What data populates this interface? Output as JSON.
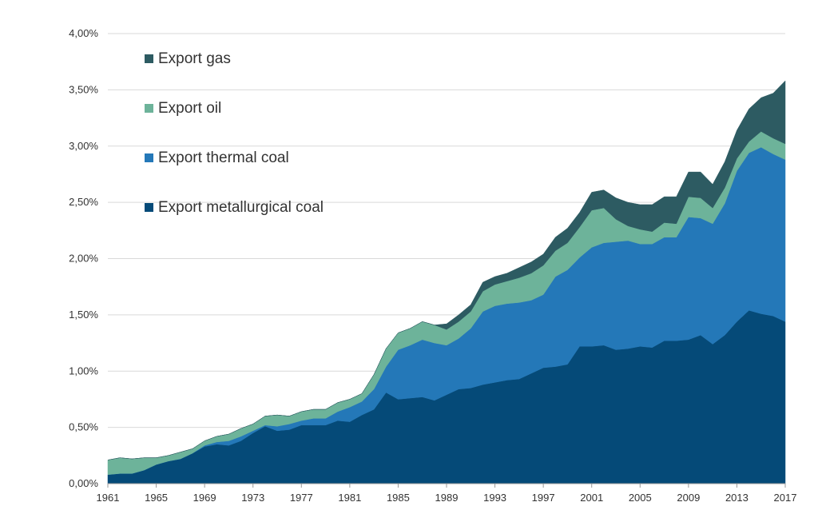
{
  "chart_data": {
    "type": "area",
    "stacked": true,
    "title": "",
    "xlabel": "",
    "ylabel": "",
    "ylim": [
      0,
      4.0
    ],
    "y_ticks": [
      "0,00%",
      "0,50%",
      "1,00%",
      "1,50%",
      "2,00%",
      "2,50%",
      "3,00%",
      "3,50%",
      "4,00%"
    ],
    "x_ticks": [
      "1961",
      "1965",
      "1969",
      "1973",
      "1977",
      "1981",
      "1985",
      "1989",
      "1993",
      "1997",
      "2001",
      "2005",
      "2009",
      "2013",
      "2017"
    ],
    "grid": true,
    "legend_position": "top-left",
    "x": [
      1961,
      1962,
      1963,
      1964,
      1965,
      1966,
      1967,
      1968,
      1969,
      1970,
      1971,
      1972,
      1973,
      1974,
      1975,
      1976,
      1977,
      1978,
      1979,
      1980,
      1981,
      1982,
      1983,
      1984,
      1985,
      1986,
      1987,
      1988,
      1989,
      1990,
      1991,
      1992,
      1993,
      1994,
      1995,
      1996,
      1997,
      1998,
      1999,
      2000,
      2001,
      2002,
      2003,
      2004,
      2005,
      2006,
      2007,
      2008,
      2009,
      2010,
      2011,
      2012,
      2013,
      2014,
      2015,
      2016,
      2017
    ],
    "series": [
      {
        "name": "Export metallurgical coal",
        "color": "#054a78",
        "values": [
          0.08,
          0.09,
          0.09,
          0.12,
          0.17,
          0.2,
          0.22,
          0.27,
          0.33,
          0.35,
          0.34,
          0.38,
          0.45,
          0.51,
          0.47,
          0.48,
          0.52,
          0.52,
          0.52,
          0.56,
          0.55,
          0.61,
          0.66,
          0.81,
          0.75,
          0.76,
          0.77,
          0.74,
          0.79,
          0.84,
          0.85,
          0.88,
          0.9,
          0.92,
          0.93,
          0.98,
          1.03,
          1.04,
          1.06,
          1.22,
          1.22,
          1.23,
          1.19,
          1.2,
          1.22,
          1.21,
          1.27,
          1.27,
          1.28,
          1.32,
          1.24,
          1.32,
          1.44,
          1.54,
          1.51,
          1.49,
          1.44
        ]
      },
      {
        "name": "Export thermal coal",
        "color": "#2478b8",
        "values": [
          0.0,
          0.0,
          0.0,
          0.0,
          0.0,
          0.0,
          0.0,
          0.0,
          0.01,
          0.02,
          0.04,
          0.04,
          0.02,
          0.01,
          0.04,
          0.05,
          0.04,
          0.06,
          0.06,
          0.08,
          0.13,
          0.12,
          0.18,
          0.23,
          0.44,
          0.47,
          0.51,
          0.51,
          0.44,
          0.45,
          0.53,
          0.65,
          0.68,
          0.68,
          0.68,
          0.65,
          0.65,
          0.8,
          0.84,
          0.79,
          0.88,
          0.91,
          0.96,
          0.96,
          0.91,
          0.92,
          0.92,
          0.92,
          1.09,
          1.04,
          1.07,
          1.17,
          1.34,
          1.4,
          1.48,
          1.44,
          1.44
        ]
      },
      {
        "name": "Export oil",
        "color": "#6db39a",
        "values": [
          0.13,
          0.14,
          0.13,
          0.11,
          0.06,
          0.05,
          0.06,
          0.04,
          0.04,
          0.05,
          0.06,
          0.07,
          0.06,
          0.08,
          0.1,
          0.07,
          0.08,
          0.08,
          0.08,
          0.08,
          0.07,
          0.07,
          0.13,
          0.16,
          0.15,
          0.15,
          0.16,
          0.16,
          0.14,
          0.15,
          0.15,
          0.18,
          0.19,
          0.2,
          0.22,
          0.24,
          0.26,
          0.23,
          0.24,
          0.27,
          0.33,
          0.31,
          0.2,
          0.13,
          0.13,
          0.11,
          0.13,
          0.12,
          0.18,
          0.18,
          0.14,
          0.14,
          0.11,
          0.1,
          0.14,
          0.14,
          0.14
        ]
      },
      {
        "name": "Export gas",
        "color": "#2d5b62",
        "values": [
          0.0,
          0.0,
          0.0,
          0.0,
          0.0,
          0.0,
          0.0,
          0.0,
          0.0,
          0.0,
          0.0,
          0.0,
          0.0,
          0.0,
          0.0,
          0.0,
          0.0,
          0.0,
          0.0,
          0.0,
          0.0,
          0.0,
          0.0,
          0.0,
          0.0,
          0.0,
          0.0,
          0.0,
          0.05,
          0.06,
          0.06,
          0.08,
          0.07,
          0.07,
          0.09,
          0.1,
          0.1,
          0.12,
          0.13,
          0.13,
          0.16,
          0.16,
          0.19,
          0.21,
          0.22,
          0.24,
          0.23,
          0.24,
          0.22,
          0.23,
          0.21,
          0.23,
          0.25,
          0.29,
          0.3,
          0.4,
          0.56
        ]
      }
    ]
  }
}
